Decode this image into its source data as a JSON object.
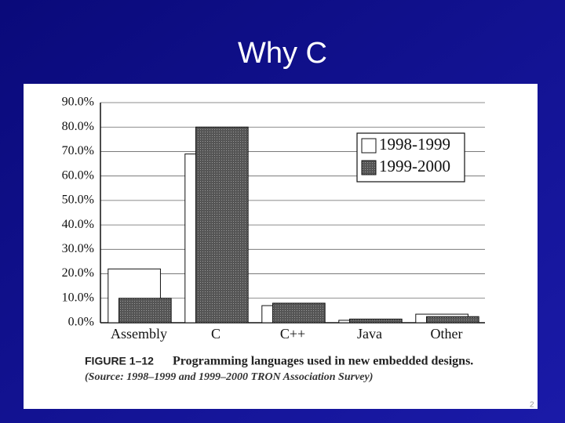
{
  "slide": {
    "title": "Why C",
    "page_number": "2"
  },
  "chart_data": {
    "type": "bar",
    "caption_label": "FIGURE 1–12",
    "caption": "Programming languages used in new embedded designs.",
    "source": "(Source: 1998–1999 and 1999–2000 TRON Association Survey)",
    "categories": [
      "Assembly",
      "C",
      "C++",
      "Java",
      "Other"
    ],
    "series": [
      {
        "name": "1998-1999",
        "color": "#ffffff",
        "values": [
          22,
          69,
          7,
          1,
          3.5
        ]
      },
      {
        "name": "1999-2000",
        "color": "#4a4a4a",
        "values": [
          10,
          80,
          8,
          1.5,
          2.5
        ]
      }
    ],
    "ylim": [
      0,
      90
    ],
    "yticks": [
      {
        "value": 0,
        "label": "0.0%"
      },
      {
        "value": 10,
        "label": "10.0%"
      },
      {
        "value": 20,
        "label": "20.0%"
      },
      {
        "value": 30,
        "label": "30.0%"
      },
      {
        "value": 40,
        "label": "40.0%"
      },
      {
        "value": 50,
        "label": "50.0%"
      },
      {
        "value": 60,
        "label": "60.0%"
      },
      {
        "value": 70,
        "label": "70.0%"
      },
      {
        "value": 80,
        "label": "80.0%"
      },
      {
        "value": 90,
        "label": "90.0%"
      }
    ],
    "grid": true,
    "legend": "upper right"
  }
}
